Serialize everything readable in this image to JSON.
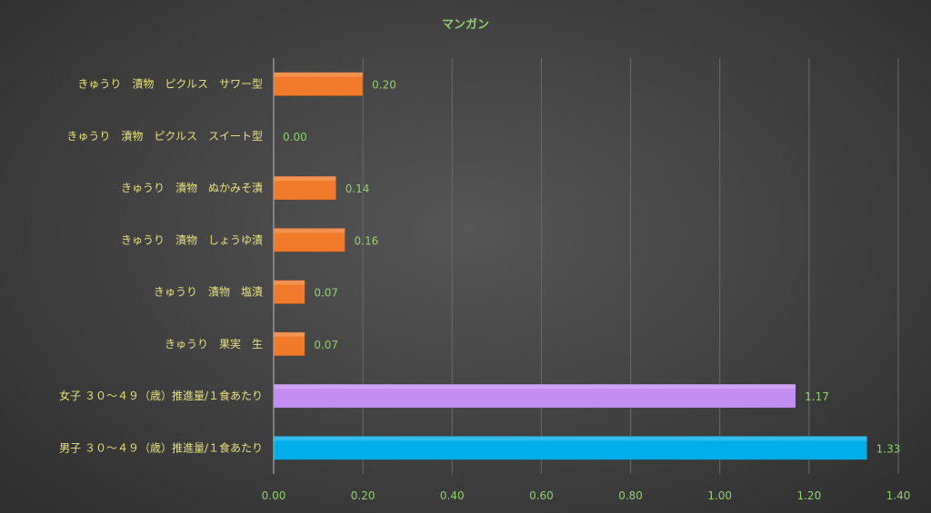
{
  "chart_data": {
    "type": "bar",
    "orientation": "horizontal",
    "title": "マンガン",
    "categories": [
      "きゅうり　漬物　ピクルス　サワー型",
      "きゅうり　漬物　ピクルス　スイート型",
      "きゅうり　漬物　ぬかみそ漬",
      "きゅうり　漬物　しょうゆ漬",
      "きゅうり　漬物　塩漬",
      "きゅうり　果実　生",
      "女子 ３０～４９（歳）推進量/１食あたり",
      "男子 ３０～４９（歳）推進量/１食あたり"
    ],
    "values": [
      0.2,
      0.0,
      0.14,
      0.16,
      0.07,
      0.07,
      1.17,
      1.33
    ],
    "value_labels": [
      "0.20",
      "0.00",
      "0.14",
      "0.16",
      "0.07",
      "0.07",
      "1.17",
      "1.33"
    ],
    "bar_colors": [
      "#f07a2a",
      "#f07a2a",
      "#f07a2a",
      "#f07a2a",
      "#f07a2a",
      "#f07a2a",
      "#c38ef2",
      "#00aee8"
    ],
    "xlim": [
      0,
      1.4
    ],
    "x_ticks": [
      "0.00",
      "0.20",
      "0.40",
      "0.60",
      "0.80",
      "1.00",
      "1.20",
      "1.40"
    ],
    "x_tick_values": [
      0,
      0.2,
      0.4,
      0.6,
      0.8,
      1.0,
      1.2,
      1.4
    ],
    "grid": true,
    "legend": "none"
  }
}
